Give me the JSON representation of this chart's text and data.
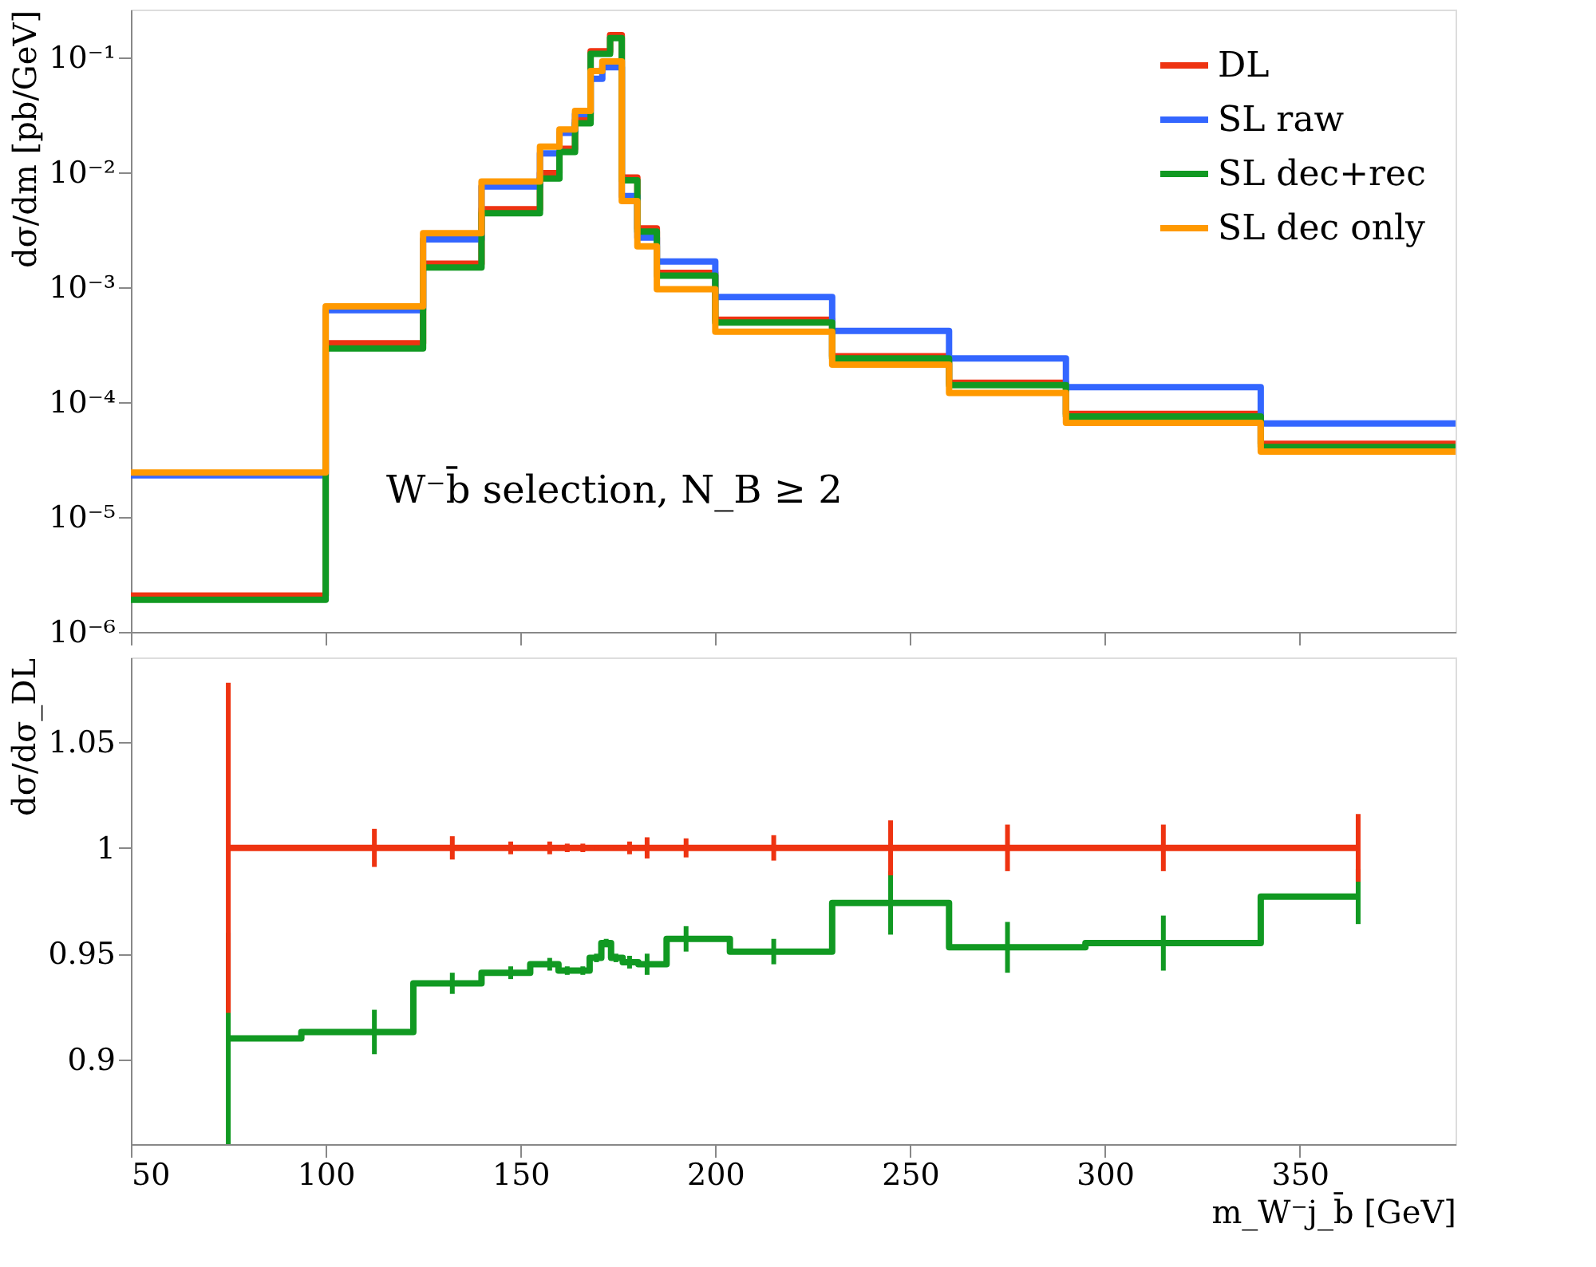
{
  "chart_data": [
    {
      "type": "histogram",
      "ylabel": "dσ/dm [pb/GeV]",
      "log": true,
      "legend": "top right",
      "tick_labels": "y",
      "grid": false,
      "bins": [
        50,
        100,
        125,
        140,
        155,
        160,
        164,
        168,
        171,
        173,
        176,
        180,
        185,
        200,
        230,
        260,
        290,
        340,
        390
      ],
      "xlim": [
        50,
        390
      ],
      "xticks": [
        50,
        100,
        150,
        200,
        250,
        300,
        350
      ],
      "ylim": [
        1e-06,
        0.26
      ],
      "yticks": [
        {
          "value": 1e-06,
          "label": "10⁻⁶"
        },
        {
          "value": 1e-05,
          "label": "10⁻⁵"
        },
        {
          "value": 0.0001,
          "label": "10⁻⁴"
        },
        {
          "value": 0.001,
          "label": "10⁻³"
        },
        {
          "value": 0.01,
          "label": "10⁻²"
        },
        {
          "value": 0.1,
          "label": "10⁻¹"
        }
      ],
      "annotations": [
        "W⁻b̄ selection, N_B ≥ 2"
      ],
      "series": [
        {
          "name": "DL",
          "color": "#ee3311",
          "values": [
            2.07e-06,
            0.000325,
            0.0016,
            0.00477,
            0.0098,
            0.016,
            0.0284,
            0.113,
            0.113,
            0.156,
            0.009,
            0.00325,
            0.00133,
            0.00052,
            0.00025,
            0.000147,
            7.9e-05,
            4.33e-05
          ]
        },
        {
          "name": "SL raw",
          "color": "#3366ff",
          "values": [
            2.3e-05,
            0.00063,
            0.0026,
            0.0075,
            0.0146,
            0.022,
            0.032,
            0.065,
            0.082,
            0.082,
            0.0062,
            0.0027,
            0.00167,
            0.00082,
            0.000416,
            0.00024,
            0.000135,
            6.5e-05
          ]
        },
        {
          "name": "SL dec+rec",
          "color": "#119922",
          "values": [
            1.9e-06,
            0.000292,
            0.00148,
            0.0044,
            0.0088,
            0.015,
            0.0267,
            0.107,
            0.107,
            0.147,
            0.0085,
            0.00304,
            0.00126,
            0.000492,
            0.00024,
            0.00014,
            7.5e-05,
            4.07e-05
          ]
        },
        {
          "name": "SL dec only",
          "color": "#ff9900",
          "values": [
            2.44e-05,
            0.00068,
            0.00295,
            0.0083,
            0.0167,
            0.0235,
            0.0342,
            0.076,
            0.092,
            0.092,
            0.0056,
            0.00226,
            0.00096,
            0.00041,
            0.000212,
            0.00012,
            6.6e-05,
            3.7e-05
          ]
        }
      ]
    },
    {
      "type": "step",
      "xlabel": "m_W⁻j_b̄ [GeV]",
      "ylabel": "dσ/dσ_DL",
      "grid": false,
      "x": [
        75,
        112.5,
        132.5,
        147.5,
        157.5,
        162,
        166,
        169.5,
        172,
        174.5,
        178,
        182.5,
        192.5,
        215,
        245,
        275,
        315,
        365
      ],
      "xlim": [
        50,
        390
      ],
      "xticks": [
        50,
        100,
        150,
        200,
        250,
        300,
        350
      ],
      "ylim": [
        0.86,
        1.09
      ],
      "yticks": [
        0.9,
        0.95,
        1,
        1.05
      ],
      "series": [
        {
          "color": "#119922",
          "values": [
            0.91,
            0.913,
            0.936,
            0.941,
            0.945,
            0.942,
            0.942,
            0.948,
            0.955,
            0.948,
            0.946,
            0.945,
            0.957,
            0.951,
            0.974,
            0.953,
            0.955,
            0.977
          ],
          "errors": [
            0.05,
            0.0105,
            0.005,
            0.003,
            0.003,
            0.002,
            0.002,
            0.002,
            0.002,
            0.002,
            0.003,
            0.005,
            0.006,
            0.006,
            0.015,
            0.012,
            0.013,
            0.013
          ]
        },
        {
          "color": "#ee3311",
          "values": [
            1,
            1,
            1,
            1,
            1,
            1,
            1,
            1,
            1,
            1,
            1,
            1,
            1,
            1,
            1,
            1,
            1,
            1
          ],
          "errors": [
            0.078,
            0.009,
            0.0055,
            0.003,
            0.003,
            0.002,
            0.002,
            0.001,
            0.001,
            0.001,
            0.003,
            0.005,
            0.0045,
            0.006,
            0.013,
            0.011,
            0.011,
            0.016
          ]
        }
      ]
    }
  ]
}
